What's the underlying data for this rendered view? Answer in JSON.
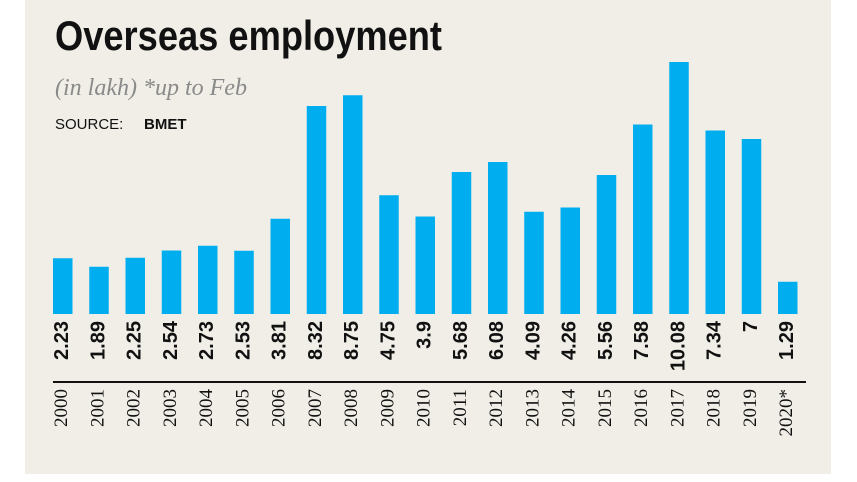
{
  "chart_data": {
    "type": "bar",
    "title": "Overseas employment",
    "subtitle": "(in lakh) *up to Feb",
    "source_label": "SOURCE:",
    "source": "BMET",
    "categories": [
      "2000",
      "2001",
      "2002",
      "2003",
      "2004",
      "2005",
      "2006",
      "2007",
      "2008",
      "2009",
      "2010",
      "2011",
      "2012",
      "2013",
      "2014",
      "2015",
      "2016",
      "2017",
      "2018",
      "2019",
      "2020*"
    ],
    "values": [
      2.23,
      1.89,
      2.25,
      2.54,
      2.73,
      2.53,
      3.81,
      8.32,
      8.75,
      4.75,
      3.9,
      5.68,
      6.08,
      4.09,
      4.26,
      5.56,
      7.58,
      10.08,
      7.34,
      7,
      1.29
    ],
    "color": "#00aeef"
  }
}
